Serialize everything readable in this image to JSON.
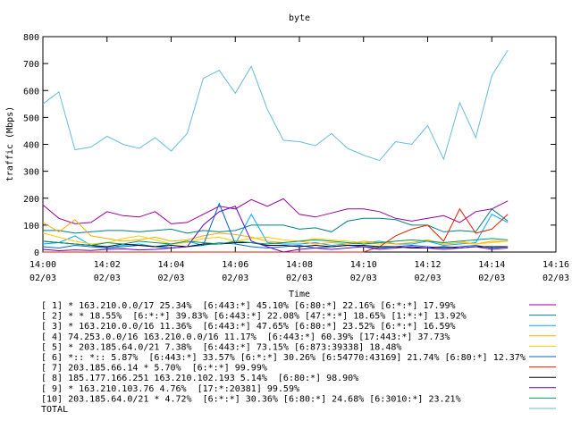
{
  "chart_data": {
    "type": "line",
    "title": "byte",
    "xlabel": "Time",
    "ylabel": "traffic (Mbps)",
    "ylim": [
      0,
      800
    ],
    "yticks": [
      "0",
      "100",
      "200",
      "300",
      "400",
      "500",
      "600",
      "700",
      "800"
    ],
    "xticks": [
      {
        "time": "14:00",
        "date": "02/03"
      },
      {
        "time": "14:02",
        "date": "02/03"
      },
      {
        "time": "14:04",
        "date": "02/03"
      },
      {
        "time": "14:06",
        "date": "02/03"
      },
      {
        "time": "14:08",
        "date": "02/03"
      },
      {
        "time": "14:10",
        "date": "02/03"
      },
      {
        "time": "14:12",
        "date": "02/03"
      },
      {
        "time": "14:14",
        "date": "02/03"
      },
      {
        "time": "14:16",
        "date": "02/03"
      }
    ],
    "xlim": [
      "14:00",
      "14:16"
    ],
    "x": [
      "14:00:00",
      "14:00:30",
      "14:01:00",
      "14:01:30",
      "14:02:00",
      "14:02:30",
      "14:03:00",
      "14:03:30",
      "14:04:00",
      "14:04:30",
      "14:05:00",
      "14:05:30",
      "14:06:00",
      "14:06:30",
      "14:07:00",
      "14:07:30",
      "14:08:00",
      "14:08:30",
      "14:09:00",
      "14:09:30",
      "14:10:00",
      "14:10:30",
      "14:11:00",
      "14:11:30",
      "14:12:00",
      "14:12:30",
      "14:13:00",
      "14:13:30",
      "14:14:00",
      "14:14:30"
    ],
    "grid": false,
    "legend_position": "bottom",
    "series": [
      {
        "name": "[ 1] * 163.210.0.0/17 25.34%  [6:443:*] 45.10% [6:80:*] 22.16% [6:*:*] 17.99%",
        "color": "#990099",
        "values": [
          175,
          125,
          105,
          110,
          150,
          135,
          130,
          150,
          105,
          110,
          140,
          170,
          160,
          195,
          170,
          198,
          140,
          130,
          145,
          160,
          160,
          150,
          125,
          115,
          125,
          135,
          110,
          150,
          160,
          190
        ]
      },
      {
        "name": "[ 2] * * 18.55%  [6:*:*] 39.83% [6:443:*] 22.08% [47:*:*] 18.65% [1:*:*] 13.92%",
        "color": "#008080",
        "values": [
          80,
          80,
          70,
          75,
          80,
          80,
          75,
          80,
          85,
          70,
          80,
          75,
          80,
          100,
          100,
          100,
          85,
          90,
          75,
          115,
          125,
          125,
          120,
          100,
          100,
          75,
          80,
          75,
          160,
          115
        ]
      },
      {
        "name": "[ 3] * 163.210.0.0/16 11.36%  [6:443:*] 47.65% [6:80:*] 23.52% [6:*:*] 16.59%",
        "color": "#00aaff",
        "values": [
          30,
          35,
          60,
          25,
          15,
          25,
          30,
          20,
          30,
          40,
          25,
          35,
          30,
          140,
          35,
          30,
          30,
          35,
          25,
          30,
          35,
          40,
          30,
          30,
          40,
          25,
          30,
          35,
          140,
          110
        ]
      },
      {
        "name": "[ 4] 74.253.0.0/16 163.210.0.0/16 11.17%  [6:443:*] 60.39% [17:443:*] 37.73%",
        "color": "#ffaa00",
        "values": [
          110,
          75,
          120,
          60,
          50,
          40,
          45,
          55,
          40,
          45,
          60,
          70,
          65,
          55,
          40,
          35,
          40,
          30,
          35,
          30,
          40,
          35,
          30,
          35,
          45,
          30,
          35,
          30,
          40,
          40
        ]
      },
      {
        "name": "[ 5] * 203.185.64.0/21 7.38%  [6:443:*] 73.15% [6:873:39338] 18.48%",
        "color": "#ffcc00",
        "values": [
          70,
          55,
          40,
          30,
          35,
          50,
          60,
          45,
          30,
          35,
          50,
          55,
          40,
          50,
          55,
          45,
          40,
          50,
          45,
          40,
          35,
          30,
          40,
          45,
          40,
          35,
          40,
          30,
          35,
          40
        ]
      },
      {
        "name": "[ 6] *:: *:: 5.87%  [6:443:*] 33.57% [6:*:*] 30.26% [6:54770:43169] 21.74% [6:80:*] 12.37%",
        "color": "#0066cc",
        "values": [
          20,
          15,
          25,
          20,
          15,
          20,
          25,
          20,
          15,
          20,
          25,
          180,
          30,
          20,
          15,
          20,
          25,
          15,
          20,
          25,
          20,
          15,
          20,
          25,
          20,
          15,
          20,
          25,
          15,
          20
        ]
      },
      {
        "name": "[ 7] 203.185.66.14 * 5.70%  [6:*:*] 99.99%",
        "color": "#dd2200",
        "values": [
          0,
          0,
          0,
          0,
          0,
          0,
          0,
          0,
          0,
          0,
          0,
          0,
          0,
          0,
          0,
          0,
          0,
          0,
          0,
          0,
          0,
          20,
          60,
          85,
          100,
          40,
          160,
          70,
          85,
          140
        ]
      },
      {
        "name": "[ 8] 185.177.166.251 163.210.102.193 5.14%  [6:80:*] 98.90%",
        "color": "#000000",
        "values": [
          40,
          35,
          30,
          25,
          20,
          30,
          25,
          20,
          25,
          20,
          30,
          30,
          35,
          35,
          25,
          25,
          20,
          25,
          20,
          25,
          25,
          20,
          20,
          15,
          15,
          20,
          15,
          20,
          20,
          20
        ]
      },
      {
        "name": "[ 9] * 163.210.103.76 4.76%  [17:*:20381] 99.59%",
        "color": "#6600cc",
        "values": [
          10,
          5,
          8,
          6,
          10,
          12,
          8,
          10,
          15,
          20,
          100,
          150,
          170,
          40,
          20,
          0,
          10,
          15,
          10,
          15,
          20,
          10,
          15,
          20,
          15,
          10,
          15,
          20,
          10,
          15
        ]
      },
      {
        "name": "[10] 203.185.64.0/21 * 4.72%  [6:*:*] 30.36% [6:80:*] 24.68% [6:3010:*] 23.21%",
        "color": "#009966",
        "values": [
          40,
          35,
          30,
          25,
          35,
          30,
          40,
          35,
          30,
          40,
          35,
          30,
          40,
          35,
          30,
          35,
          40,
          45,
          40,
          35,
          30,
          35,
          40,
          45,
          40,
          35,
          40,
          45,
          50,
          45
        ]
      },
      {
        "name": "TOTAL",
        "color": "#66bbdd",
        "values": [
          550,
          595,
          380,
          390,
          430,
          400,
          385,
          425,
          375,
          440,
          645,
          675,
          590,
          690,
          530,
          415,
          410,
          395,
          440,
          385,
          360,
          340,
          410,
          400,
          470,
          345,
          555,
          425,
          655,
          750
        ]
      }
    ]
  }
}
